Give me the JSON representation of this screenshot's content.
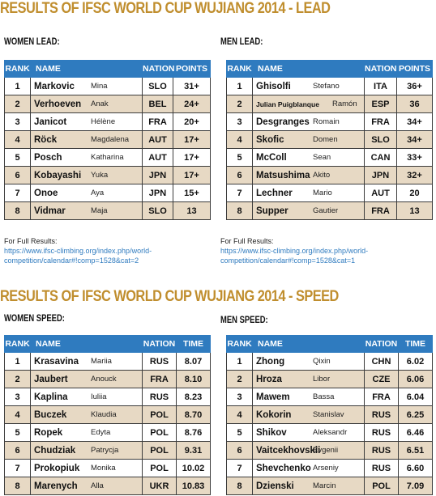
{
  "lead_title": "RESULTS OF IFSC WORLD CUP WUJIANG 2014 - LEAD",
  "speed_title": "RESULTS OF IFSC WORLD CUP WUJIANG 2014 - SPEED",
  "full_results_label": "For Full Results:",
  "women_lead": {
    "heading": "WOMEN LEAD:",
    "columns": [
      "RANK",
      "NAME",
      "NATION",
      "POINTS"
    ],
    "rows": [
      {
        "rank": "1",
        "last": "Markovic",
        "first": "Mina",
        "nation": "SLO",
        "score": "31+"
      },
      {
        "rank": "2",
        "last": "Verhoeven",
        "first": "Anak",
        "nation": "BEL",
        "score": "24+"
      },
      {
        "rank": "3",
        "last": "Janicot",
        "first": "Hélène",
        "nation": "FRA",
        "score": "20+"
      },
      {
        "rank": "4",
        "last": "Röck",
        "first": "Magdalena",
        "nation": "AUT",
        "score": "17+"
      },
      {
        "rank": "5",
        "last": "Posch",
        "first": "Katharina",
        "nation": "AUT",
        "score": "17+"
      },
      {
        "rank": "6",
        "last": "Kobayashi",
        "first": "Yuka",
        "nation": "JPN",
        "score": "17+"
      },
      {
        "rank": "7",
        "last": "Onoe",
        "first": "Aya",
        "nation": "JPN",
        "score": "15+"
      },
      {
        "rank": "8",
        "last": "Vidmar",
        "first": "Maja",
        "nation": "SLO",
        "score": "13"
      }
    ],
    "link_line1": "https://www.ifsc-climbing.org/index.php/world-",
    "link_line2": "competition/calendar#!comp=1528&cat=2"
  },
  "men_lead": {
    "heading": "MEN LEAD:",
    "columns": [
      "RANK",
      "NAME",
      "NATION",
      "POINTS"
    ],
    "rows": [
      {
        "rank": "1",
        "last": "Ghisolfi",
        "first": "Stefano",
        "nation": "ITA",
        "score": "36+"
      },
      {
        "rank": "2",
        "last": "Julian Puigblanque",
        "first": "Ramón",
        "nation": "ESP",
        "score": "36"
      },
      {
        "rank": "3",
        "last": "Desgranges",
        "first": "Romain",
        "nation": "FRA",
        "score": "34+"
      },
      {
        "rank": "4",
        "last": "Skofic",
        "first": "Domen",
        "nation": "SLO",
        "score": "34+"
      },
      {
        "rank": "5",
        "last": "McColl",
        "first": "Sean",
        "nation": "CAN",
        "score": "33+"
      },
      {
        "rank": "6",
        "last": "Matsushima",
        "first": "Akito",
        "nation": "JPN",
        "score": "32+"
      },
      {
        "rank": "7",
        "last": "Lechner",
        "first": "Mario",
        "nation": "AUT",
        "score": "20"
      },
      {
        "rank": "8",
        "last": "Supper",
        "first": "Gautier",
        "nation": "FRA",
        "score": "13"
      }
    ],
    "link_line1": "https://www.ifsc-climbing.org/index.php/world-",
    "link_line2": "competition/calendar#!comp=1528&cat=1"
  },
  "women_speed": {
    "heading": "WOMEN SPEED:",
    "columns": [
      "RANK",
      "NAME",
      "NATION",
      "TIME"
    ],
    "rows": [
      {
        "rank": "1",
        "last": "Krasavina",
        "first": "Mariia",
        "nation": "RUS",
        "score": "8.07"
      },
      {
        "rank": "2",
        "last": "Jaubert",
        "first": "Anouck",
        "nation": "FRA",
        "score": "8.10"
      },
      {
        "rank": "3",
        "last": "Kaplina",
        "first": "Iuliia",
        "nation": "RUS",
        "score": "8.23"
      },
      {
        "rank": "4",
        "last": "Buczek",
        "first": "Klaudia",
        "nation": "POL",
        "score": "8.70"
      },
      {
        "rank": "5",
        "last": "Ropek",
        "first": "Edyta",
        "nation": "POL",
        "score": "8.76"
      },
      {
        "rank": "6",
        "last": "Chudziak",
        "first": "Patrycja",
        "nation": "POL",
        "score": "9.31"
      },
      {
        "rank": "7",
        "last": "Prokopiuk",
        "first": "Monika",
        "nation": "POL",
        "score": "10.02"
      },
      {
        "rank": "8",
        "last": "Marenych",
        "first": "Alla",
        "nation": "UKR",
        "score": "10.83"
      }
    ]
  },
  "men_speed": {
    "heading": "MEN SPEED:",
    "columns": [
      "RANK",
      "NAME",
      "NATION",
      "TIME"
    ],
    "rows": [
      {
        "rank": "1",
        "last": "Zhong",
        "first": "Qixin",
        "nation": "CHN",
        "score": "6.02"
      },
      {
        "rank": "2",
        "last": "Hroza",
        "first": "Libor",
        "nation": "CZE",
        "score": "6.06"
      },
      {
        "rank": "3",
        "last": "Mawem",
        "first": "Bassa",
        "nation": "FRA",
        "score": "6.04"
      },
      {
        "rank": "4",
        "last": "Kokorin",
        "first": "Stanislav",
        "nation": "RUS",
        "score": "6.25"
      },
      {
        "rank": "5",
        "last": "Shikov",
        "first": "Aleksandr",
        "nation": "RUS",
        "score": "6.46"
      },
      {
        "rank": "6",
        "last": "Vaitcekhovskii",
        "first": "Evgenii",
        "nation": "RUS",
        "score": "6.51"
      },
      {
        "rank": "7",
        "last": "Shevchenko",
        "first": "Arseniy",
        "nation": "RUS",
        "score": "6.60"
      },
      {
        "rank": "8",
        "last": "Dzienski",
        "first": "Marcin",
        "nation": "POL",
        "score": "7.09"
      }
    ]
  }
}
